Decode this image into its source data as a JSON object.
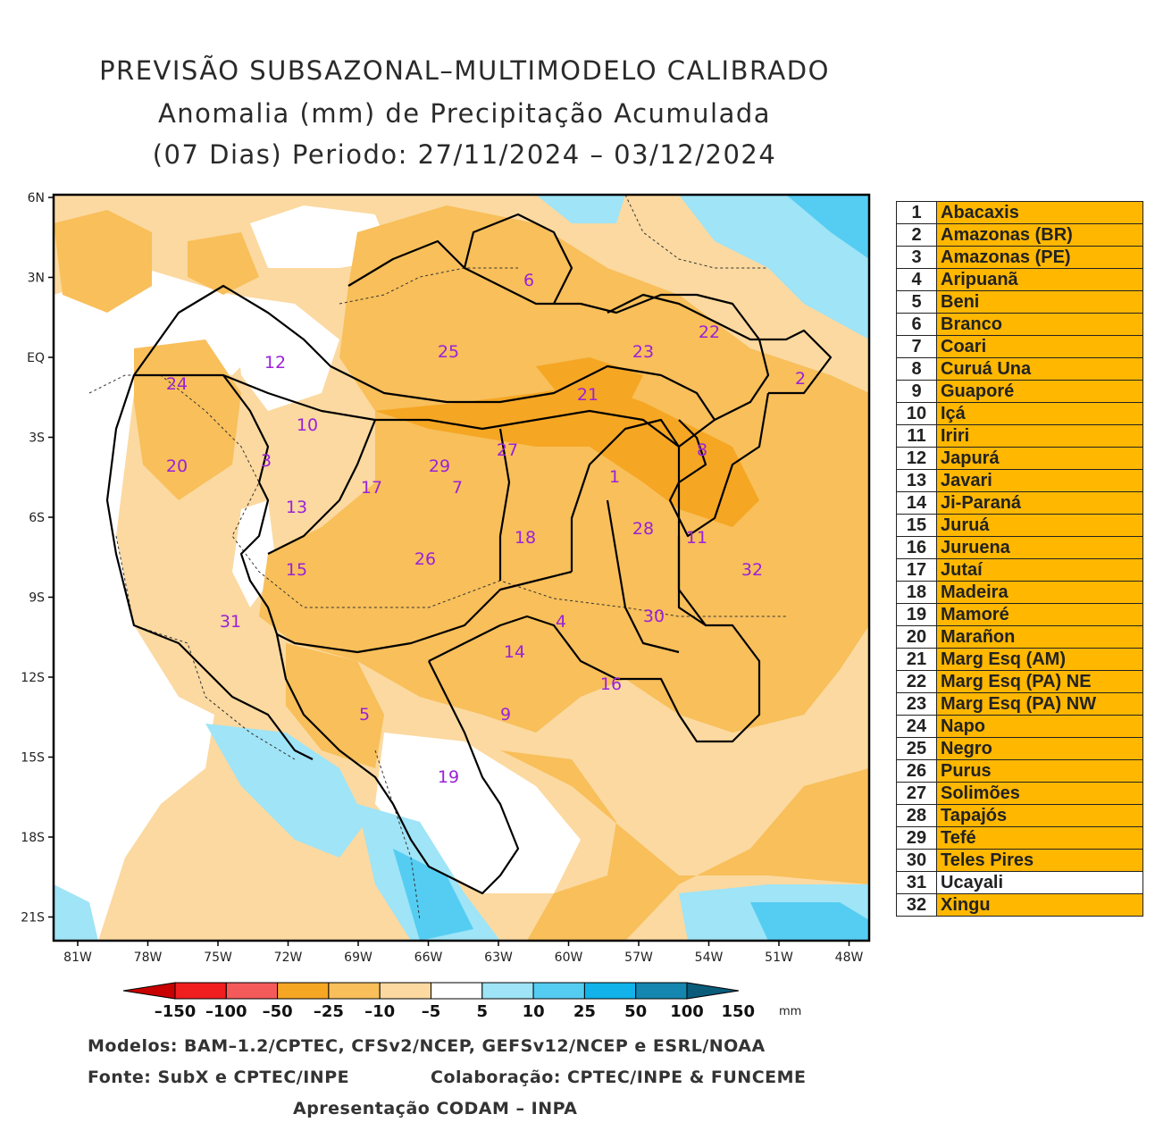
{
  "title": {
    "line1": "PREVISÃO SUBSAZONAL–MULTIMODELO CALIBRADO",
    "line2": "Anomalia (mm) de Precipitação Acumulada",
    "line3": "(07 Dias) Periodo: 27/11/2024 – 03/12/2024"
  },
  "axes": {
    "lat_labels": [
      "6N",
      "3N",
      "EQ",
      "3S",
      "6S",
      "9S",
      "12S",
      "15S",
      "18S",
      "21S"
    ],
    "lon_labels": [
      "81W",
      "78W",
      "75W",
      "72W",
      "69W",
      "66W",
      "63W",
      "60W",
      "57W",
      "54W",
      "51W",
      "48W"
    ]
  },
  "colorbar": {
    "labels": [
      "–150",
      "–100",
      "–50",
      "–25",
      "–10",
      "–5",
      "5",
      "10",
      "25",
      "50",
      "100",
      "150"
    ],
    "colors": [
      "#c80000",
      "#f01e1e",
      "#f55a5a",
      "#f5a623",
      "#f8bf5a",
      "#fbd9a0",
      "#ffffff",
      "#9fe4f7",
      "#55cdf2",
      "#12b3ea",
      "#1586b0",
      "#0a5c7a"
    ],
    "unit": "mm"
  },
  "basins": [
    {
      "num": "1",
      "name": "Abacaxis",
      "color": "#ffb700"
    },
    {
      "num": "2",
      "name": "Amazonas (BR)",
      "color": "#ffb700"
    },
    {
      "num": "3",
      "name": "Amazonas (PE)",
      "color": "#ffb700"
    },
    {
      "num": "4",
      "name": "Aripuanã",
      "color": "#ffb700"
    },
    {
      "num": "5",
      "name": "Beni",
      "color": "#ffb700"
    },
    {
      "num": "6",
      "name": "Branco",
      "color": "#ffb700"
    },
    {
      "num": "7",
      "name": "Coari",
      "color": "#ffb700"
    },
    {
      "num": "8",
      "name": "Curuá Una",
      "color": "#ffb700"
    },
    {
      "num": "9",
      "name": "Guaporé",
      "color": "#ffb700"
    },
    {
      "num": "10",
      "name": "Içá",
      "color": "#ffb700"
    },
    {
      "num": "11",
      "name": "Iriri",
      "color": "#ffb700"
    },
    {
      "num": "12",
      "name": "Japurá",
      "color": "#ffb700"
    },
    {
      "num": "13",
      "name": "Javari",
      "color": "#ffb700"
    },
    {
      "num": "14",
      "name": "Ji-Paraná",
      "color": "#ffb700"
    },
    {
      "num": "15",
      "name": "Juruá",
      "color": "#ffb700"
    },
    {
      "num": "16",
      "name": "Juruena",
      "color": "#ffb700"
    },
    {
      "num": "17",
      "name": "Jutaí",
      "color": "#ffb700"
    },
    {
      "num": "18",
      "name": "Madeira",
      "color": "#ffb700"
    },
    {
      "num": "19",
      "name": "Mamoré",
      "color": "#ffb700"
    },
    {
      "num": "20",
      "name": "Marañon",
      "color": "#ffb700"
    },
    {
      "num": "21",
      "name": "Marg Esq (AM)",
      "color": "#ffb700"
    },
    {
      "num": "22",
      "name": "Marg Esq (PA) NE",
      "color": "#ffb700"
    },
    {
      "num": "23",
      "name": "Marg Esq (PA) NW",
      "color": "#ffb700"
    },
    {
      "num": "24",
      "name": "Napo",
      "color": "#ffb700"
    },
    {
      "num": "25",
      "name": "Negro",
      "color": "#ffb700"
    },
    {
      "num": "26",
      "name": "Purus",
      "color": "#ffb700"
    },
    {
      "num": "27",
      "name": "Solimões",
      "color": "#ffb700"
    },
    {
      "num": "28",
      "name": "Tapajós",
      "color": "#ffb700"
    },
    {
      "num": "29",
      "name": "Tefé",
      "color": "#ffb700"
    },
    {
      "num": "30",
      "name": "Teles Pires",
      "color": "#ffb700"
    },
    {
      "num": "31",
      "name": "Ucayali",
      "color": "#ffffff"
    },
    {
      "num": "32",
      "name": "Xingu",
      "color": "#ffb700"
    }
  ],
  "footer": {
    "models": "Modelos: BAM–1.2/CPTEC, CFSv2/NCEP, GEFSv12/NCEP e ESRL/NOAA",
    "source": "Fonte: SubX e CPTEC/INPE",
    "collab": "Colaboração: CPTEC/INPE & FUNCEME",
    "presentation": "Apresentação CODAM – INPA"
  }
}
